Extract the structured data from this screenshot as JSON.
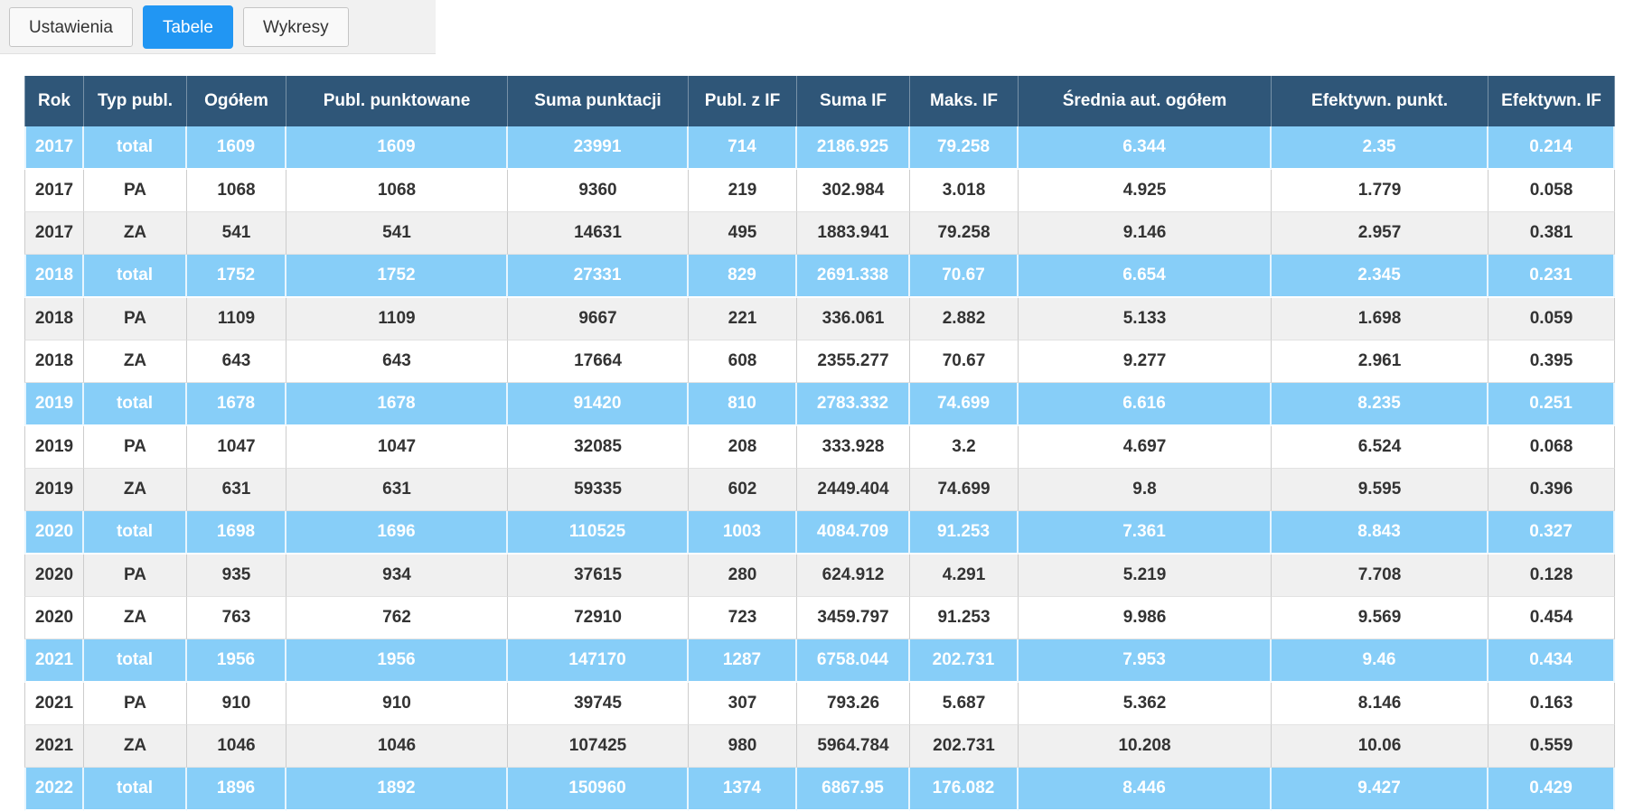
{
  "tabs": [
    {
      "label": "Ustawienia",
      "active": false
    },
    {
      "label": "Tabele",
      "active": true
    },
    {
      "label": "Wykresy",
      "active": false
    }
  ],
  "colors": {
    "active_tab_bg": "#2196f3",
    "header_bg": "#2f5678",
    "total_row_bg": "#87cef8",
    "stripe_row_bg": "#f0f0f0"
  },
  "table": {
    "columns": [
      "Rok",
      "Typ publ.",
      "Ogółem",
      "Publ. punktowane",
      "Suma punktacji",
      "Publ. z IF",
      "Suma IF",
      "Maks. IF",
      "Średnia aut. ogółem",
      "Efektywn. punkt.",
      "Efektywn. IF"
    ],
    "rows": [
      {
        "style": "total",
        "cells": [
          "2017",
          "total",
          "1609",
          "1609",
          "23991",
          "714",
          "2186.925",
          "79.258",
          "6.344",
          "2.35",
          "0.214"
        ]
      },
      {
        "style": "white",
        "cells": [
          "2017",
          "PA",
          "1068",
          "1068",
          "9360",
          "219",
          "302.984",
          "3.018",
          "4.925",
          "1.779",
          "0.058"
        ]
      },
      {
        "style": "gray",
        "cells": [
          "2017",
          "ZA",
          "541",
          "541",
          "14631",
          "495",
          "1883.941",
          "79.258",
          "9.146",
          "2.957",
          "0.381"
        ]
      },
      {
        "style": "total",
        "cells": [
          "2018",
          "total",
          "1752",
          "1752",
          "27331",
          "829",
          "2691.338",
          "70.67",
          "6.654",
          "2.345",
          "0.231"
        ]
      },
      {
        "style": "gray",
        "cells": [
          "2018",
          "PA",
          "1109",
          "1109",
          "9667",
          "221",
          "336.061",
          "2.882",
          "5.133",
          "1.698",
          "0.059"
        ]
      },
      {
        "style": "white",
        "cells": [
          "2018",
          "ZA",
          "643",
          "643",
          "17664",
          "608",
          "2355.277",
          "70.67",
          "9.277",
          "2.961",
          "0.395"
        ]
      },
      {
        "style": "total",
        "cells": [
          "2019",
          "total",
          "1678",
          "1678",
          "91420",
          "810",
          "2783.332",
          "74.699",
          "6.616",
          "8.235",
          "0.251"
        ]
      },
      {
        "style": "white",
        "cells": [
          "2019",
          "PA",
          "1047",
          "1047",
          "32085",
          "208",
          "333.928",
          "3.2",
          "4.697",
          "6.524",
          "0.068"
        ]
      },
      {
        "style": "gray",
        "cells": [
          "2019",
          "ZA",
          "631",
          "631",
          "59335",
          "602",
          "2449.404",
          "74.699",
          "9.8",
          "9.595",
          "0.396"
        ]
      },
      {
        "style": "total",
        "cells": [
          "2020",
          "total",
          "1698",
          "1696",
          "110525",
          "1003",
          "4084.709",
          "91.253",
          "7.361",
          "8.843",
          "0.327"
        ]
      },
      {
        "style": "gray",
        "cells": [
          "2020",
          "PA",
          "935",
          "934",
          "37615",
          "280",
          "624.912",
          "4.291",
          "5.219",
          "7.708",
          "0.128"
        ]
      },
      {
        "style": "white",
        "cells": [
          "2020",
          "ZA",
          "763",
          "762",
          "72910",
          "723",
          "3459.797",
          "91.253",
          "9.986",
          "9.569",
          "0.454"
        ]
      },
      {
        "style": "total",
        "cells": [
          "2021",
          "total",
          "1956",
          "1956",
          "147170",
          "1287",
          "6758.044",
          "202.731",
          "7.953",
          "9.46",
          "0.434"
        ]
      },
      {
        "style": "white",
        "cells": [
          "2021",
          "PA",
          "910",
          "910",
          "39745",
          "307",
          "793.26",
          "5.687",
          "5.362",
          "8.146",
          "0.163"
        ]
      },
      {
        "style": "gray",
        "cells": [
          "2021",
          "ZA",
          "1046",
          "1046",
          "107425",
          "980",
          "5964.784",
          "202.731",
          "10.208",
          "10.06",
          "0.559"
        ]
      },
      {
        "style": "total",
        "cells": [
          "2022",
          "total",
          "1896",
          "1892",
          "150960",
          "1374",
          "6867.95",
          "176.082",
          "8.446",
          "9.427",
          "0.429"
        ]
      }
    ]
  }
}
